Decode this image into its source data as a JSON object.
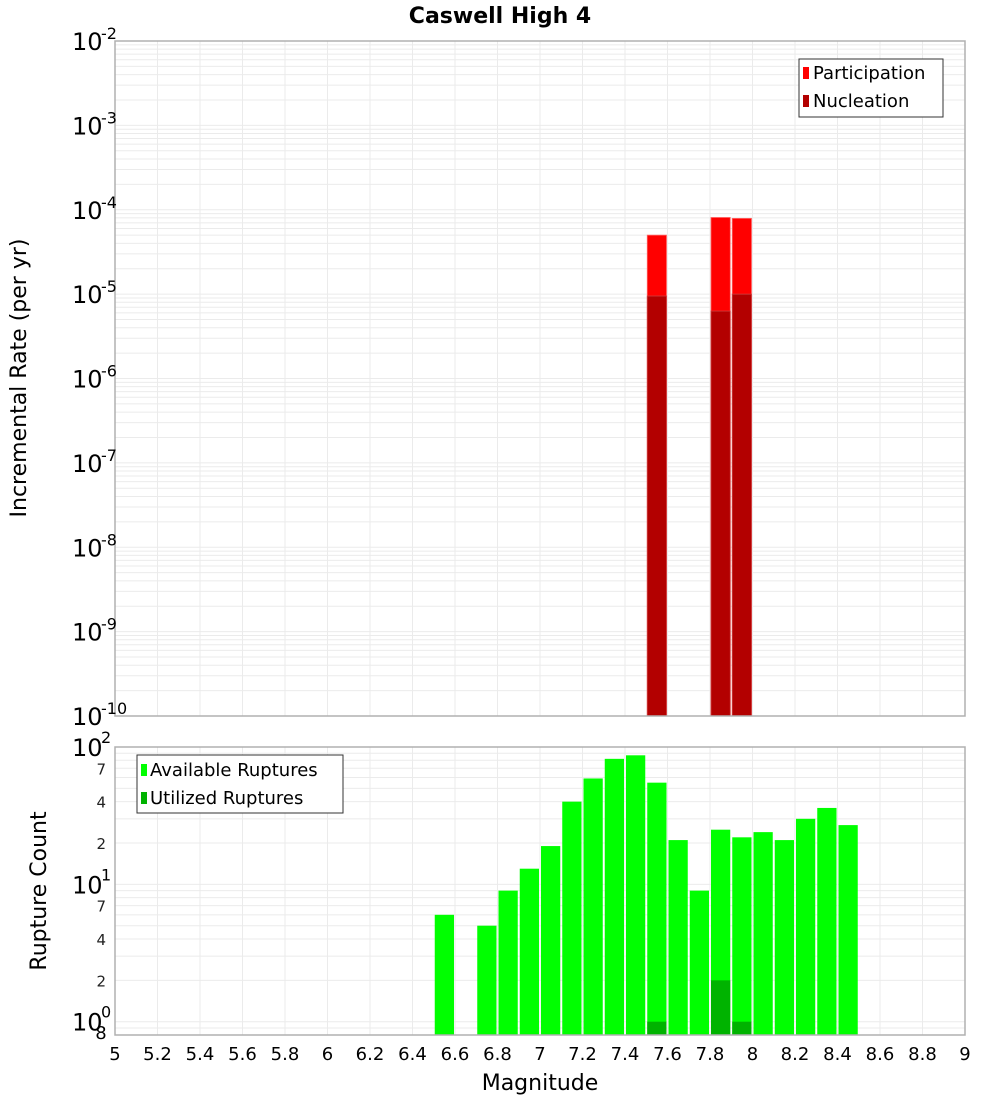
{
  "chart_data": [
    {
      "type": "bar",
      "title": "Caswell High 4",
      "xlabel": "Magnitude",
      "ylabel": "Incremental Rate (per yr)",
      "yscale": "log",
      "ylim": [
        1e-10,
        0.01
      ],
      "xlim": [
        5,
        9
      ],
      "grid": true,
      "legend_position": "top-right",
      "y_tick_labels": [
        "10^-2",
        "10^-3",
        "10^-4",
        "10^-5",
        "10^-6",
        "10^-7",
        "10^-8",
        "10^-9",
        "10^-10"
      ],
      "bin_width": 0.1,
      "series": [
        {
          "name": "Participation",
          "color": "#ff0000",
          "x": [
            7.55,
            7.85,
            7.95
          ],
          "values": [
            5e-05,
            8.1e-05,
            7.9e-05
          ]
        },
        {
          "name": "Nucleation",
          "color": "#b30000",
          "x": [
            7.55,
            7.85,
            7.95
          ],
          "values": [
            9.5e-06,
            6.3e-06,
            1e-05
          ]
        }
      ]
    },
    {
      "type": "bar",
      "title": "",
      "xlabel": "Magnitude",
      "ylabel": "Rupture Count",
      "yscale": "log",
      "ylim": [
        0.8,
        100
      ],
      "xlim": [
        5,
        9
      ],
      "grid": true,
      "legend_position": "top-left",
      "y_tick_labels": [
        "10^2",
        "7",
        "4",
        "2",
        "10^1",
        "7",
        "4",
        "2",
        "10^0",
        "8"
      ],
      "x_tick_labels": [
        "5",
        "5.2",
        "5.4",
        "5.6",
        "5.8",
        "6",
        "6.2",
        "6.4",
        "6.6",
        "6.8",
        "7",
        "7.2",
        "7.4",
        "7.6",
        "7.8",
        "8",
        "8.2",
        "8.4",
        "8.6",
        "8.8",
        "9"
      ],
      "bin_width": 0.1,
      "series": [
        {
          "name": "Available Ruptures",
          "color": "#00ff00",
          "x": [
            6.55,
            6.75,
            6.85,
            6.95,
            7.05,
            7.15,
            7.25,
            7.35,
            7.45,
            7.55,
            7.65,
            7.75,
            7.85,
            7.95,
            8.05,
            8.15,
            8.25,
            8.35,
            8.45
          ],
          "values": [
            6,
            5,
            9,
            13,
            19,
            40,
            59,
            82,
            87,
            55,
            21,
            9,
            25,
            22,
            24,
            21,
            30,
            36,
            27
          ]
        },
        {
          "name": "Utilized Ruptures",
          "color": "#00b300",
          "x": [
            7.55,
            7.85,
            7.95
          ],
          "values": [
            1,
            2,
            1
          ]
        }
      ]
    }
  ],
  "page": {
    "title": "Caswell High 4",
    "x_axis_label": "Magnitude",
    "top_y_axis_label": "Incremental Rate (per yr)",
    "bottom_y_axis_label": "Rupture Count"
  },
  "legends": {
    "top": [
      {
        "label": "Participation",
        "color": "#ff0000"
      },
      {
        "label": "Nucleation",
        "color": "#b30000"
      }
    ],
    "bottom": [
      {
        "label": "Available Ruptures",
        "color": "#00ff00"
      },
      {
        "label": "Utilized Ruptures",
        "color": "#00b300"
      }
    ]
  },
  "colors": {
    "grid": "#ebebeb",
    "plot_border": "#b0b0b0",
    "legend_border": "#333333"
  }
}
